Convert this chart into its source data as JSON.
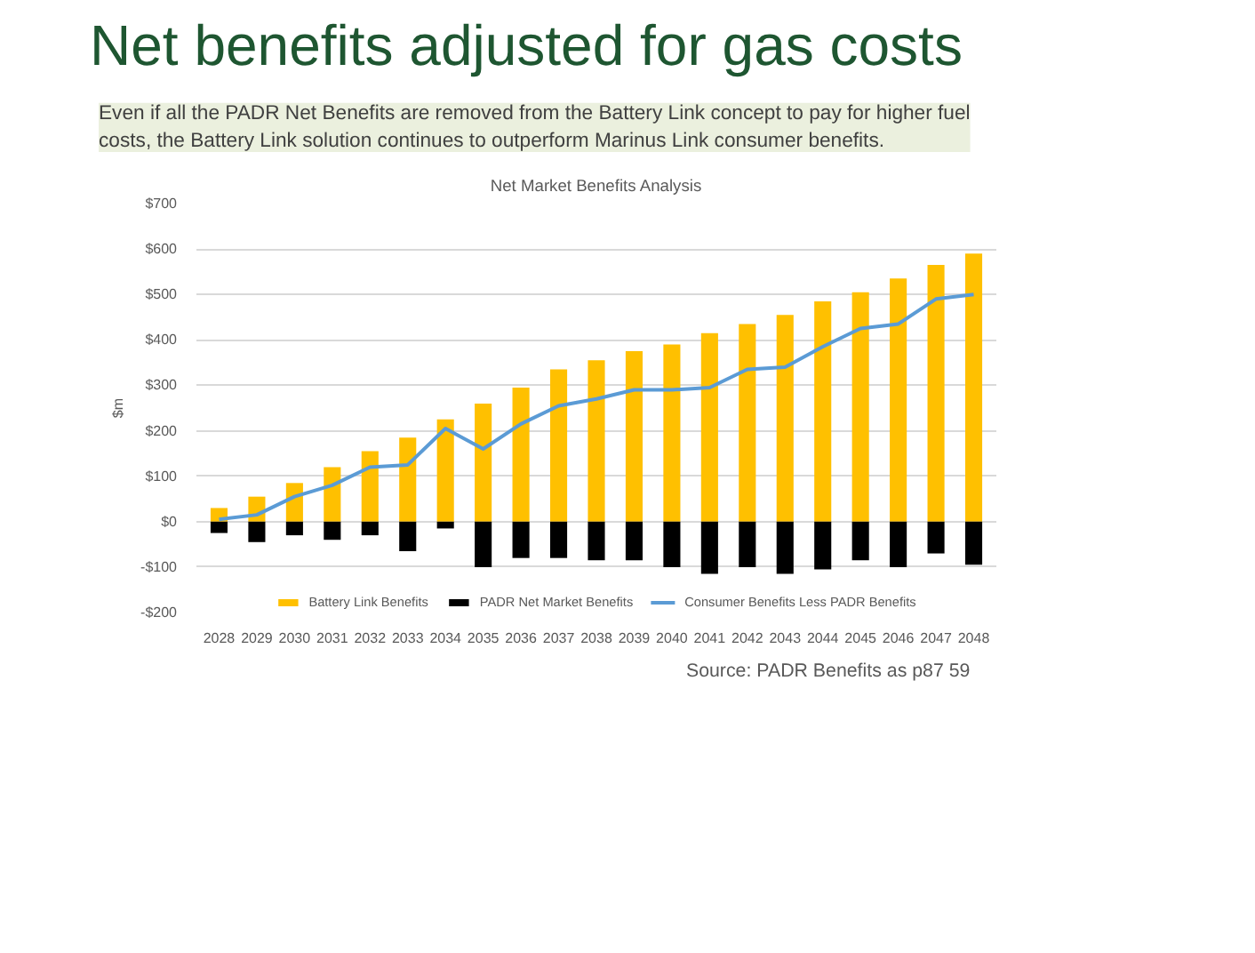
{
  "chart_data": {
    "type": "bar",
    "title": "Net benefits adjusted for gas costs",
    "subtitle": "Even if all the PADR Net Benefits are removed from the Battery Link concept to pay for higher fuel costs, the Battery Link solution continues to outperform Marinus Link consumer benefits.",
    "annotations": [
      "Net Market Benefits Analysis",
      "Source: PADR Benefits as p87",
      "59"
    ],
    "ylabel": "$m",
    "categories": [
      "2028",
      "2029",
      "2030",
      "2031",
      "2032",
      "2033",
      "2034",
      "2035",
      "2036",
      "2037",
      "2038",
      "2039",
      "2040",
      "2041",
      "2042",
      "2043",
      "2044",
      "2045",
      "2046",
      "2047",
      "2048"
    ],
    "series": [
      {
        "name": "Battery Link Benefits",
        "color": "#ffc000",
        "values": [
          30,
          55,
          85,
          120,
          155,
          185,
          225,
          260,
          295,
          335,
          355,
          375,
          390,
          415,
          435,
          455,
          485,
          505,
          535,
          565,
          590
        ]
      },
      {
        "name": "PADR Net Market Benefits",
        "color": "#000000",
        "values": [
          -25,
          -45,
          -30,
          -40,
          -30,
          -65,
          -15,
          -100,
          -80,
          -80,
          -85,
          -85,
          -100,
          -115,
          -100,
          -115,
          -105,
          -85,
          -100,
          -70,
          -95
        ]
      },
      {
        "name": "Consumer Benefits Less PADR Benefits",
        "type": "line",
        "color": "#5b9bd5",
        "values": [
          5,
          15,
          55,
          80,
          120,
          125,
          205,
          160,
          215,
          255,
          270,
          290,
          290,
          295,
          335,
          340,
          385,
          425,
          435,
          490,
          500
        ]
      }
    ],
    "ylim": [
      -200,
      700
    ],
    "yticks": [
      {
        "value": -200,
        "label": "-$200"
      },
      {
        "value": -100,
        "label": "-$100"
      },
      {
        "value": 0,
        "label": "$0"
      },
      {
        "value": 100,
        "label": "$100"
      },
      {
        "value": 200,
        "label": "$200"
      },
      {
        "value": 300,
        "label": "$300"
      },
      {
        "value": 400,
        "label": "$400"
      },
      {
        "value": 500,
        "label": "$500"
      },
      {
        "value": 600,
        "label": "$600"
      },
      {
        "value": 700,
        "label": "$700"
      }
    ],
    "grid": "y",
    "legend": "bottom",
    "stacked": true,
    "marker": "none",
    "line_style": "solid"
  }
}
